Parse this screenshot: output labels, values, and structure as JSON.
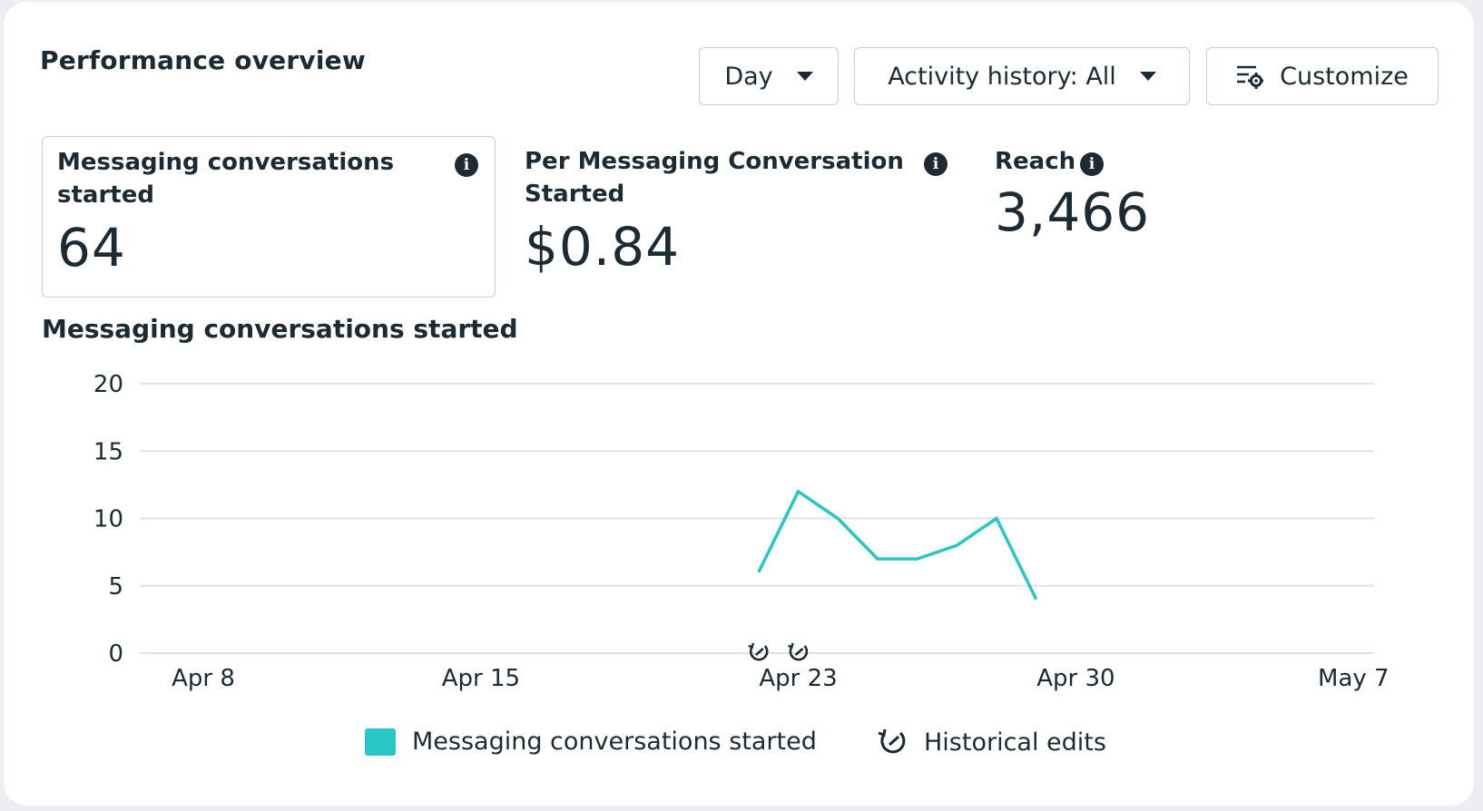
{
  "header": {
    "title": "Performance overview",
    "day_button": "Day",
    "activity_button": "Activity history: All",
    "customize_button": "Customize"
  },
  "metrics": [
    {
      "label_line1": "Messaging conversations",
      "label_line2": "started",
      "value": "64"
    },
    {
      "label_line1": "Per Messaging Conversation",
      "label_line2": "Started",
      "value": "$0.84"
    },
    {
      "label_line1": "Reach",
      "value": "3,466"
    }
  ],
  "icons": {
    "info": "info-icon",
    "caret": "caret-down-icon",
    "customize": "sliders-gear-icon",
    "historical_edit": "historical-edit-icon"
  },
  "colors": {
    "series": "#2ac6c6",
    "grid": "#dfe3e8",
    "text": "#1c2b33"
  },
  "chart_data": {
    "type": "line",
    "title": "Messaging conversations started",
    "xlabel": "",
    "ylabel": "",
    "ylim": [
      0,
      20
    ],
    "yticks": [
      "0",
      "5",
      "10",
      "15",
      "20"
    ],
    "xticks": [
      "Apr 8",
      "Apr 15",
      "Apr 23",
      "Apr 30",
      "May 7"
    ],
    "grid": true,
    "legend_position": "bottom-center",
    "series": [
      {
        "name": "Messaging conversations started",
        "x": [
          "Apr 22",
          "Apr 23",
          "Apr 24",
          "Apr 25",
          "Apr 26",
          "Apr 27",
          "Apr 28",
          "Apr 29"
        ],
        "values": [
          6,
          12,
          10,
          7,
          7,
          8,
          10,
          4
        ]
      }
    ],
    "historical_edits_dates": [
      "Apr 22",
      "Apr 23"
    ],
    "legend": [
      "Messaging conversations started",
      "Historical edits"
    ]
  }
}
